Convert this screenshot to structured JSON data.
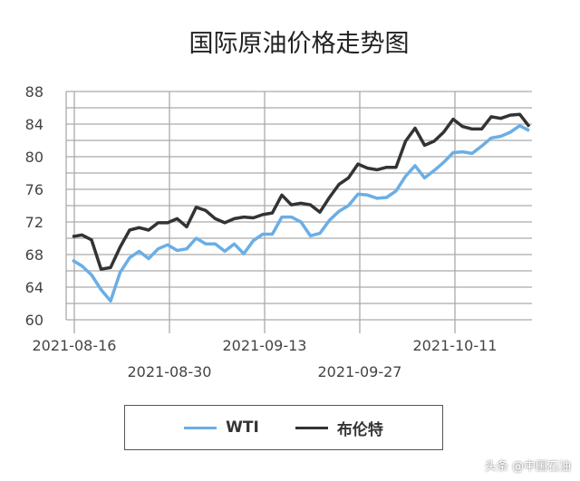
{
  "chart_data": {
    "type": "line",
    "title": "国际原油价格走势图",
    "ylim": [
      60,
      88
    ],
    "yticks": [
      60,
      64,
      68,
      72,
      76,
      80,
      84,
      88
    ],
    "grid": true,
    "legend_placement": "bottom",
    "xticks": [
      {
        "index": 0,
        "label": "2021-08-16",
        "row": 1
      },
      {
        "index": 10,
        "label": "2021-08-30",
        "row": 2
      },
      {
        "index": 20,
        "label": "2021-09-13",
        "row": 1
      },
      {
        "index": 30,
        "label": "2021-09-27",
        "row": 2
      },
      {
        "index": 40,
        "label": "2021-10-11",
        "row": 1
      }
    ],
    "series": [
      {
        "name": "WTI",
        "color": "#6aaee6",
        "values": [
          67.3,
          66.6,
          65.5,
          63.7,
          62.3,
          65.8,
          67.6,
          68.4,
          67.5,
          68.7,
          69.2,
          68.5,
          68.7,
          70.0,
          69.3,
          69.3,
          68.4,
          69.3,
          68.1,
          69.7,
          70.5,
          70.5,
          72.6,
          72.6,
          72.0,
          70.3,
          70.6,
          72.2,
          73.3,
          74.0,
          75.4,
          75.3,
          74.9,
          75.0,
          75.8,
          77.6,
          78.9,
          77.4,
          78.3,
          79.3,
          80.5,
          80.6,
          80.4,
          81.3,
          82.3,
          82.5,
          83.0,
          83.8,
          83.2
        ]
      },
      {
        "name": "布伦特",
        "color": "#333333",
        "values": [
          70.2,
          70.4,
          69.8,
          66.2,
          66.4,
          68.9,
          71.0,
          71.3,
          71.0,
          71.9,
          71.9,
          72.4,
          71.4,
          73.8,
          73.4,
          72.4,
          71.9,
          72.4,
          72.6,
          72.5,
          72.9,
          73.1,
          75.3,
          74.1,
          74.3,
          74.1,
          73.2,
          75.0,
          76.6,
          77.4,
          79.1,
          78.6,
          78.4,
          78.7,
          78.7,
          81.9,
          83.5,
          81.4,
          81.9,
          83.0,
          84.6,
          83.7,
          83.4,
          83.4,
          84.9,
          84.7,
          85.1,
          85.2,
          83.7
        ]
      }
    ]
  },
  "watermark": "头条 @中国石油"
}
